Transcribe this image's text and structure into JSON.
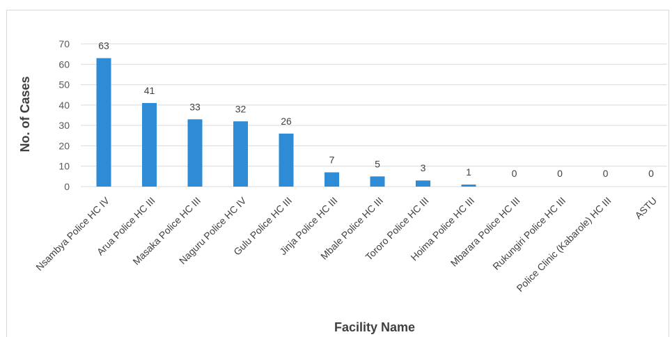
{
  "chart_data": {
    "type": "bar",
    "title": "",
    "xlabel": "Facility Name",
    "ylabel": "No. of Cases",
    "ylim": [
      0,
      70
    ],
    "yticks": [
      0,
      10,
      20,
      30,
      40,
      50,
      60,
      70
    ],
    "grid": true,
    "legend": "none",
    "bar_color": "#2e8bd6",
    "categories": [
      "Nsambya Police HC IV",
      "Arua Police HC III",
      "Masaka Police HC III",
      "Naguru Police HC IV",
      "Gulu Police HC III",
      "Jinja Police HC III",
      "Mbale Police HC III",
      "Tororo Police HC III",
      "Hoima Police HC III",
      "Mbarara Police HC III",
      "Rukungiri Police HC III",
      "Police Clinic (Kabarole) HC III",
      "ASTU"
    ],
    "values": [
      63,
      41,
      33,
      32,
      26,
      7,
      5,
      3,
      1,
      0,
      0,
      0,
      0
    ]
  }
}
